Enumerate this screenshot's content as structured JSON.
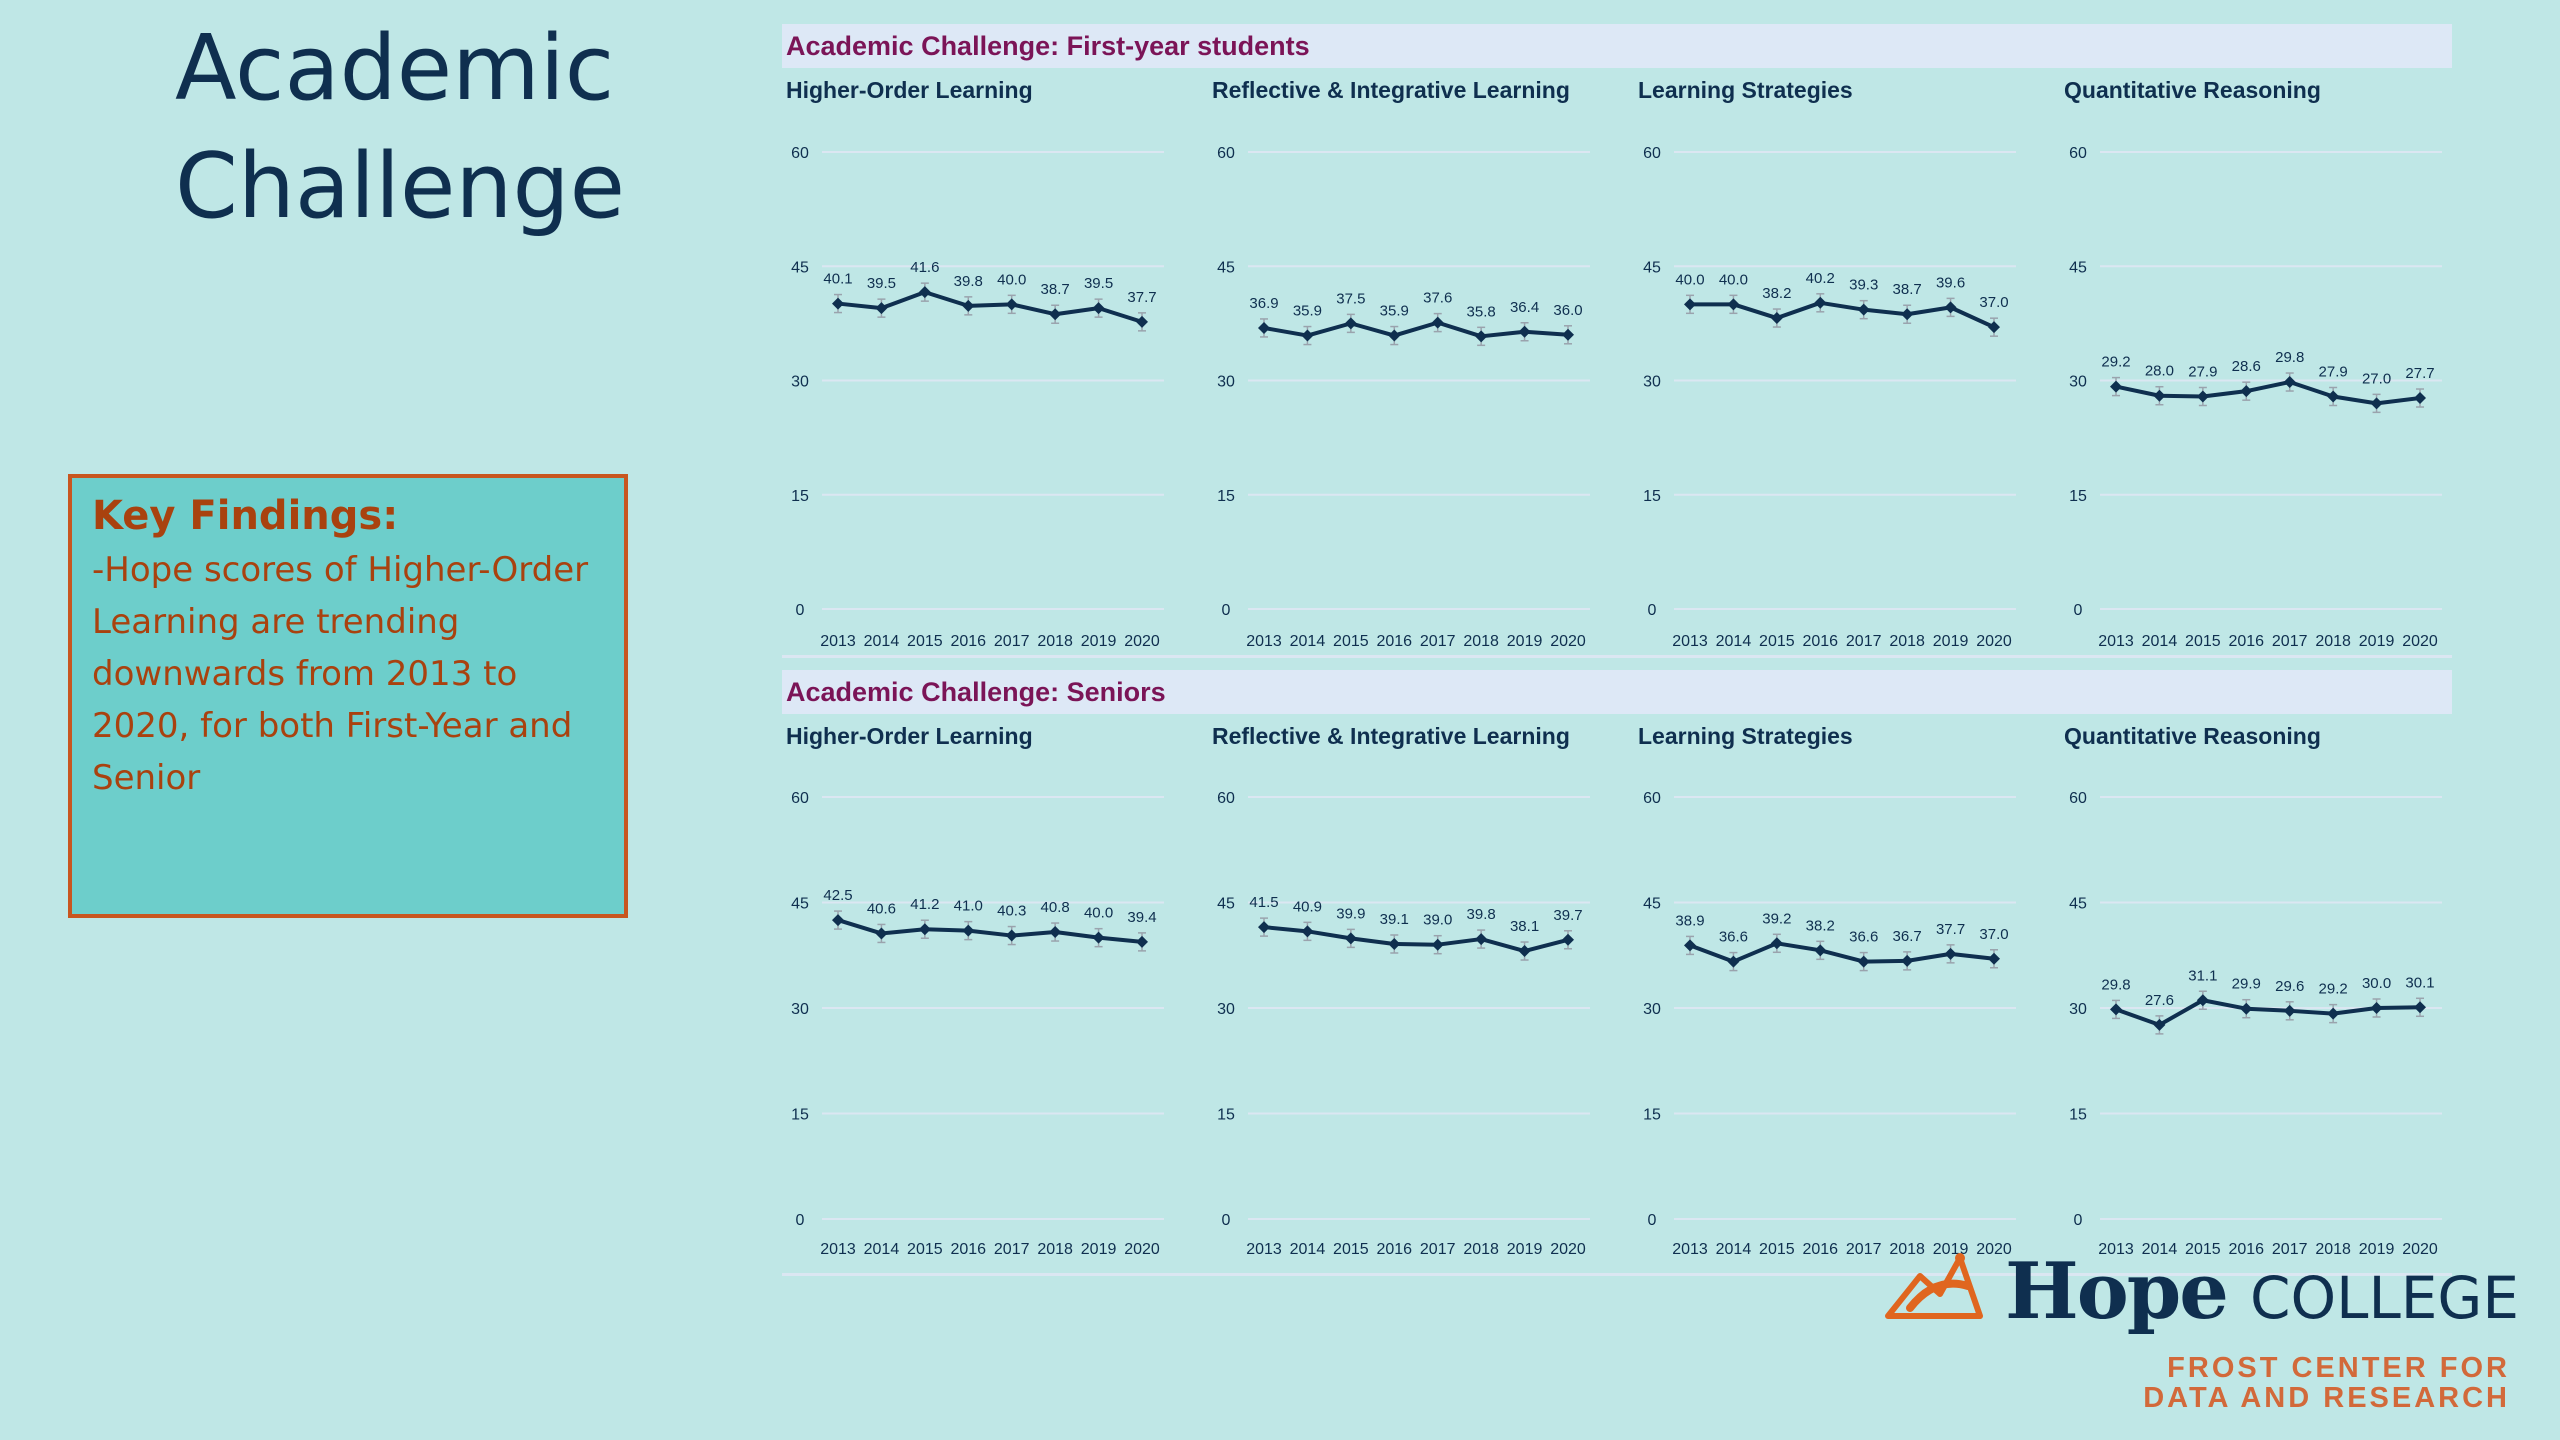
{
  "page": {
    "title_line1": "Academic",
    "title_line2": "Challenge",
    "findings_head": "Key Findings:",
    "findings_body": "-Hope scores of Higher-Order Learning are trending downwards from 2013 to 2020, for both First-Year and Senior"
  },
  "sections": [
    {
      "title": "Academic Challenge: First-year students"
    },
    {
      "title": "Academic Challenge: Seniors"
    }
  ],
  "logo": {
    "word": "Hope",
    "college": "COLLEGE",
    "sub1": "FROST CENTER FOR",
    "sub2": "DATA AND RESEARCH",
    "colors": {
      "navy": "#0f2f4f",
      "orange": "#e0661f"
    }
  },
  "colors": {
    "line": "#0f2f4f",
    "grid": "#dbe7f2",
    "error_bar": "#9aa3ad",
    "section_title": "#7b1457"
  },
  "chart_data": [
    {
      "type": "line",
      "section": 0,
      "title": "Higher-Order Learning",
      "categories": [
        "2013",
        "2014",
        "2015",
        "2016",
        "2017",
        "2018",
        "2019",
        "2020"
      ],
      "values": [
        40.1,
        39.5,
        41.6,
        39.8,
        40.0,
        38.7,
        39.5,
        37.7
      ],
      "ylim": [
        0,
        60
      ],
      "yticks": [
        0,
        15,
        30,
        45,
        60
      ]
    },
    {
      "type": "line",
      "section": 0,
      "title": "Reflective & Integrative Learning",
      "categories": [
        "2013",
        "2014",
        "2015",
        "2016",
        "2017",
        "2018",
        "2019",
        "2020"
      ],
      "values": [
        36.9,
        35.9,
        37.5,
        35.9,
        37.6,
        35.8,
        36.4,
        36.0
      ],
      "ylim": [
        0,
        60
      ],
      "yticks": [
        0,
        15,
        30,
        45,
        60
      ]
    },
    {
      "type": "line",
      "section": 0,
      "title": "Learning Strategies",
      "categories": [
        "2013",
        "2014",
        "2015",
        "2016",
        "2017",
        "2018",
        "2019",
        "2020"
      ],
      "values": [
        40.0,
        40.0,
        38.2,
        40.2,
        39.3,
        38.7,
        39.6,
        37.0
      ],
      "ylim": [
        0,
        60
      ],
      "yticks": [
        0,
        15,
        30,
        45,
        60
      ]
    },
    {
      "type": "line",
      "section": 0,
      "title": "Quantitative Reasoning",
      "categories": [
        "2013",
        "2014",
        "2015",
        "2016",
        "2017",
        "2018",
        "2019",
        "2020"
      ],
      "values": [
        29.2,
        28.0,
        27.9,
        28.6,
        29.8,
        27.9,
        27.0,
        27.7
      ],
      "ylim": [
        0,
        60
      ],
      "yticks": [
        0,
        15,
        30,
        45,
        60
      ]
    },
    {
      "type": "line",
      "section": 1,
      "title": "Higher-Order Learning",
      "categories": [
        "2013",
        "2014",
        "2015",
        "2016",
        "2017",
        "2018",
        "2019",
        "2020"
      ],
      "values": [
        42.5,
        40.6,
        41.2,
        41.0,
        40.3,
        40.8,
        40.0,
        39.4
      ],
      "ylim": [
        0,
        60
      ],
      "yticks": [
        0,
        15,
        30,
        45,
        60
      ]
    },
    {
      "type": "line",
      "section": 1,
      "title": "Reflective & Integrative Learning",
      "categories": [
        "2013",
        "2014",
        "2015",
        "2016",
        "2017",
        "2018",
        "2019",
        "2020"
      ],
      "values": [
        41.5,
        40.9,
        39.9,
        39.1,
        39.0,
        39.8,
        38.1,
        39.7
      ],
      "ylim": [
        0,
        60
      ],
      "yticks": [
        0,
        15,
        30,
        45,
        60
      ]
    },
    {
      "type": "line",
      "section": 1,
      "title": "Learning Strategies",
      "categories": [
        "2013",
        "2014",
        "2015",
        "2016",
        "2017",
        "2018",
        "2019",
        "2020"
      ],
      "values": [
        38.9,
        36.6,
        39.2,
        38.2,
        36.6,
        36.7,
        37.7,
        37.0
      ],
      "ylim": [
        0,
        60
      ],
      "yticks": [
        0,
        15,
        30,
        45,
        60
      ]
    },
    {
      "type": "line",
      "section": 1,
      "title": "Quantitative Reasoning",
      "categories": [
        "2013",
        "2014",
        "2015",
        "2016",
        "2017",
        "2018",
        "2019",
        "2020"
      ],
      "values": [
        29.8,
        27.6,
        31.1,
        29.9,
        29.6,
        29.2,
        30.0,
        30.1
      ],
      "ylim": [
        0,
        60
      ],
      "yticks": [
        0,
        15,
        30,
        45,
        60
      ]
    }
  ]
}
